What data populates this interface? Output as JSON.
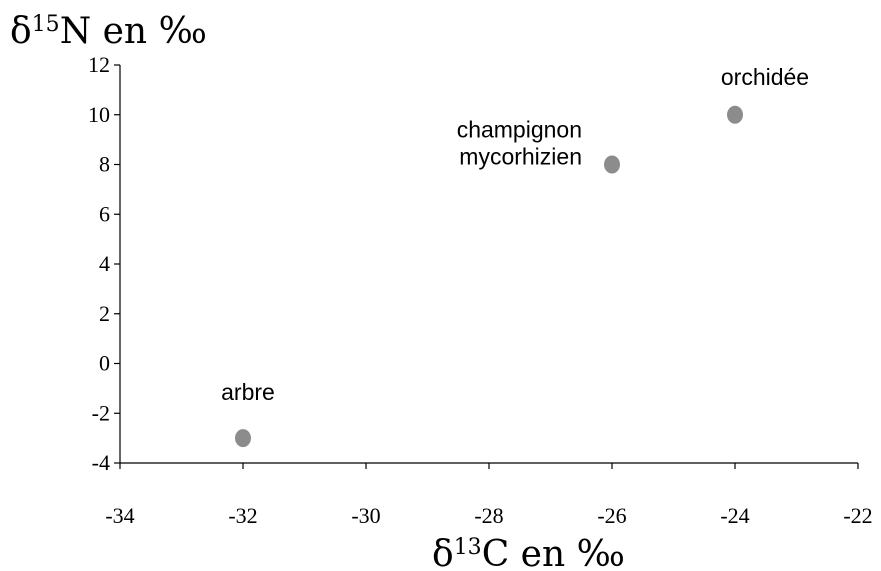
{
  "chart_data": {
    "type": "scatter",
    "ylabel": {
      "symbol": "δ",
      "sup": "15",
      "rest": "N en ‰"
    },
    "xlabel": {
      "symbol": "δ",
      "sup": "13",
      "rest": "C en ‰"
    },
    "xlim": [
      -34,
      -22
    ],
    "ylim": [
      -4,
      12
    ],
    "xticks": [
      -34,
      -32,
      -30,
      -28,
      -26,
      -24,
      -22
    ],
    "yticks": [
      -4,
      -2,
      0,
      2,
      4,
      6,
      8,
      10,
      12
    ],
    "grid": false,
    "marker_color": "#8c8c8c",
    "points": [
      {
        "x": -32,
        "y": -3,
        "label": [
          "arbre"
        ]
      },
      {
        "x": -26,
        "y": 8,
        "label": [
          "champignon",
          "mycorhizien"
        ]
      },
      {
        "x": -24,
        "y": 10,
        "label": [
          "orchidée"
        ]
      }
    ]
  }
}
